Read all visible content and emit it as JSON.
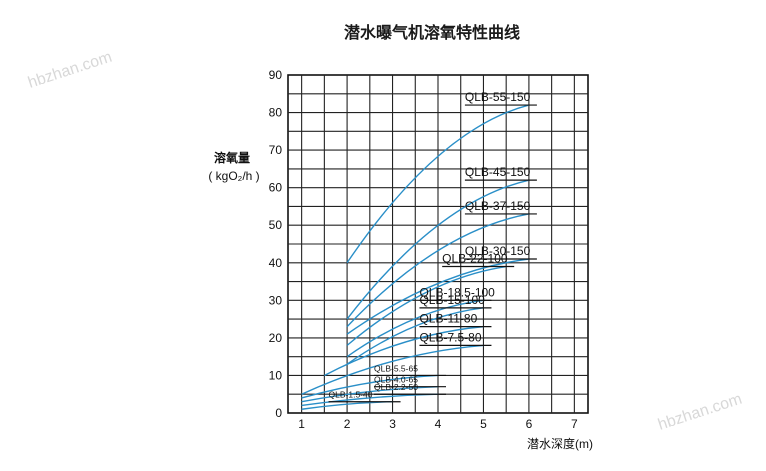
{
  "watermarks": [
    "hbzhan.com",
    "hbzhan.com"
  ],
  "chart_data": {
    "type": "line",
    "title": "潜水曝气机溶氧特性曲线",
    "ylabel_line1": "溶氧量",
    "ylabel_line2": "( kgO₂/h )",
    "xlabel": "潜水深度(m)",
    "xlim": [
      0.7,
      7.3
    ],
    "ylim": [
      0,
      90
    ],
    "x_ticks": [
      1,
      2,
      3,
      4,
      5,
      6,
      7
    ],
    "y_ticks": [
      0,
      10,
      20,
      30,
      40,
      50,
      60,
      70,
      80,
      90
    ],
    "grid": true,
    "line_color": "#2a8fc8",
    "series": [
      {
        "name": "QLB-55-150",
        "x": [
          2,
          6
        ],
        "y": [
          40,
          82
        ]
      },
      {
        "name": "QLB-45-150",
        "x": [
          2,
          6
        ],
        "y": [
          25,
          62
        ]
      },
      {
        "name": "QLB-37-150",
        "x": [
          2,
          6
        ],
        "y": [
          23,
          53
        ]
      },
      {
        "name": "QLB-30-150",
        "x": [
          2,
          6
        ],
        "y": [
          21,
          41
        ]
      },
      {
        "name": "QLB-22-100",
        "x": [
          2,
          5.5
        ],
        "y": [
          18,
          39
        ]
      },
      {
        "name": "QLB-18.5-100",
        "x": [
          2,
          5
        ],
        "y": [
          15,
          30
        ]
      },
      {
        "name": "QLB-15-100",
        "x": [
          2,
          5
        ],
        "y": [
          13,
          28
        ]
      },
      {
        "name": "QLB-11-80",
        "x": [
          1.5,
          5
        ],
        "y": [
          10,
          23
        ]
      },
      {
        "name": "QLB-7.5-80",
        "x": [
          1,
          5
        ],
        "y": [
          5,
          18
        ]
      },
      {
        "name": "QLB-5.5-65",
        "x": [
          1,
          4
        ],
        "y": [
          4,
          10
        ]
      },
      {
        "name": "QLB-4.0-65",
        "x": [
          1,
          4
        ],
        "y": [
          3,
          7
        ]
      },
      {
        "name": "QLB-2.2-50",
        "x": [
          1,
          4
        ],
        "y": [
          2,
          5
        ]
      },
      {
        "name": "QLB-1.5-40",
        "x": [
          1,
          3
        ],
        "y": [
          1,
          3
        ]
      }
    ]
  }
}
